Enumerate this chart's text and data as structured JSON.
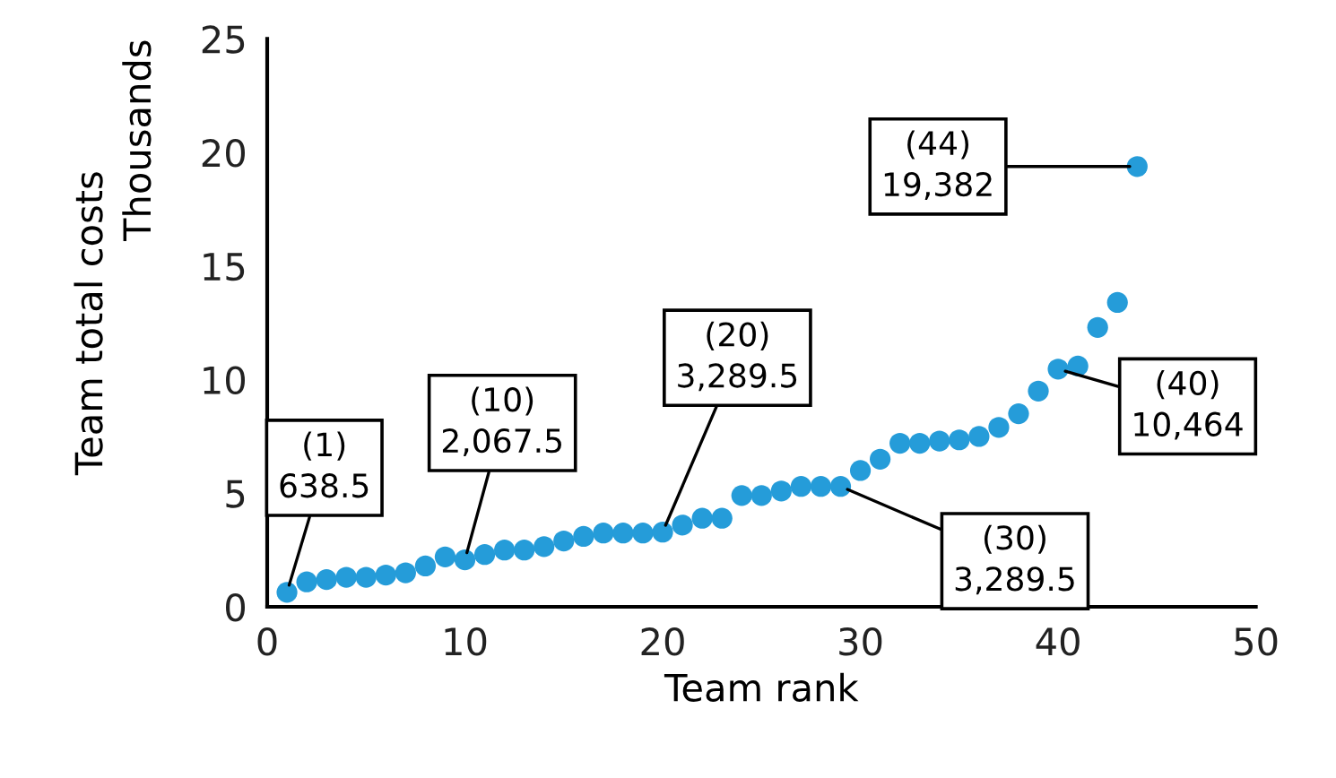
{
  "chart_data": {
    "type": "scatter",
    "xlabel": "Team rank",
    "ylabel": "Team total costs",
    "x": [
      1,
      2,
      3,
      4,
      5,
      6,
      7,
      8,
      9,
      10,
      11,
      12,
      13,
      14,
      15,
      16,
      17,
      18,
      19,
      20,
      21,
      22,
      23,
      24,
      25,
      26,
      27,
      28,
      29,
      30,
      31,
      32,
      33,
      34,
      35,
      36,
      37,
      38,
      39,
      40,
      41,
      42,
      43,
      44
    ],
    "series": [
      {
        "color": "#259cd9",
        "values": [
          0.6385,
          1.1,
          1.2,
          1.3,
          1.3,
          1.4,
          1.5,
          1.8,
          2.2,
          2.0675,
          2.3,
          2.5,
          2.5,
          2.65,
          2.9,
          3.1,
          3.25,
          3.25,
          3.25,
          3.2895,
          3.6,
          3.9,
          3.9,
          4.9,
          4.9,
          5.1,
          5.3,
          5.3,
          5.3,
          6.0,
          6.5,
          7.2,
          7.2,
          7.3,
          7.35,
          7.5,
          7.9,
          8.5,
          9.5,
          10.464,
          10.6,
          12.3,
          13.4,
          19.382
        ]
      }
    ],
    "xlim": [
      0,
      50
    ],
    "xticks": [
      0,
      10,
      20,
      30,
      40,
      50
    ],
    "ylim": [
      0,
      25
    ],
    "yticks": [
      0,
      5,
      10,
      15,
      20,
      25
    ],
    "grid": false,
    "marker": "circle",
    "annotations": [
      "Thousands",
      {
        "text": "(1)\n638.5",
        "x": 1,
        "y": 0.6385
      },
      {
        "text": "(10)\n2,067.5",
        "x": 10,
        "y": 2.0675
      },
      {
        "text": "(20)\n3,289.5",
        "x": 20,
        "y": 3.2895
      },
      {
        "text": "(30)\n3,289.5",
        "x": 29,
        "y": 5.3
      },
      {
        "text": "(40)\n10,464",
        "x": 40,
        "y": 10.464
      },
      {
        "text": "(44)\n19,382",
        "x": 44,
        "y": 19.382
      }
    ]
  }
}
